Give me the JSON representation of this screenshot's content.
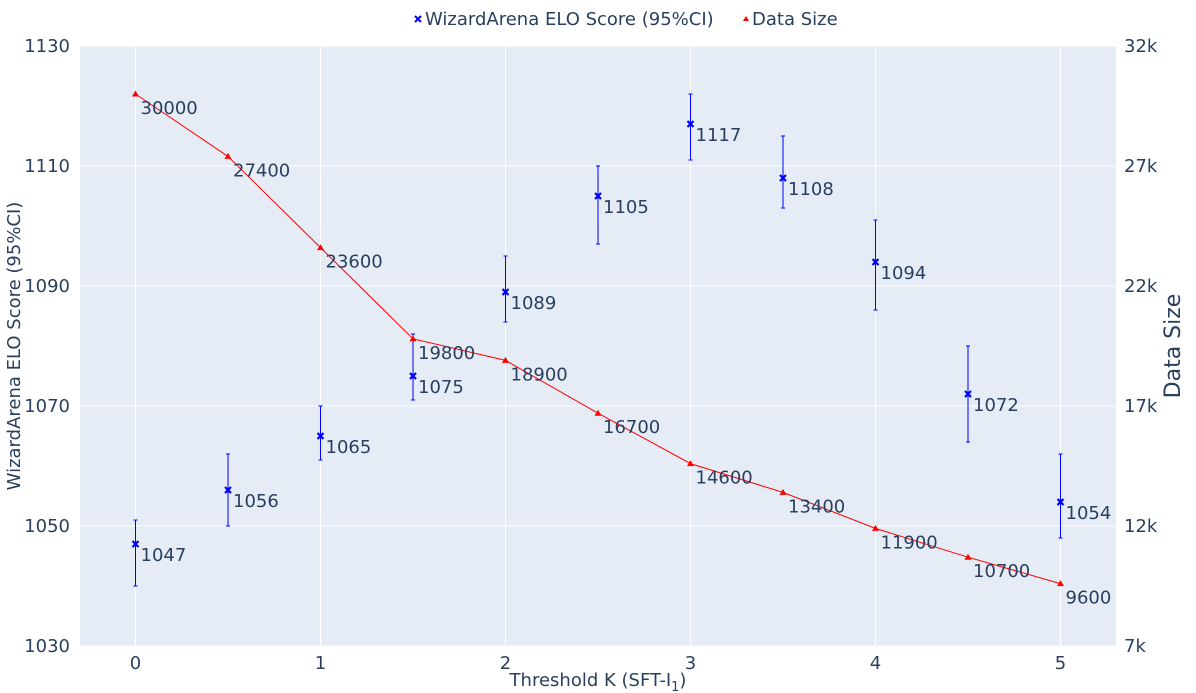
{
  "chart_data": {
    "type": "line",
    "x": [
      0,
      0.5,
      1,
      1.5,
      2,
      2.5,
      3,
      3.5,
      4,
      4.5,
      5
    ],
    "xlabel": "Threshold K (SFT-I",
    "xlabel_sub": "1",
    "xlabel_close": ")",
    "xlim": [
      -0.3,
      5.3
    ],
    "xticks": [
      0,
      1,
      2,
      3,
      4,
      5
    ],
    "xtick_labels": [
      "0",
      "1",
      "2",
      "3",
      "4",
      "5"
    ],
    "y_left": {
      "label": "WizardArena ELO Score (95%CI)",
      "lim": [
        1030,
        1130
      ],
      "ticks": [
        1030,
        1050,
        1070,
        1090,
        1110,
        1130
      ],
      "tick_labels": [
        "1030",
        "1050",
        "1070",
        "1090",
        "1110",
        "1130"
      ]
    },
    "y_right": {
      "label": "Data Size",
      "lim": [
        7000,
        32000
      ],
      "ticks": [
        7000,
        12000,
        17000,
        22000,
        27000,
        32000
      ],
      "tick_labels": [
        "7k",
        "12k",
        "17k",
        "22k",
        "27k",
        "32k"
      ]
    },
    "series": [
      {
        "name": "WizardArena ELO Score (95%CI)",
        "type": "scatter",
        "axis": "left",
        "color": "#0000ff",
        "marker": "x",
        "values": [
          1047,
          1056,
          1065,
          1075,
          1089,
          1105,
          1117,
          1108,
          1094,
          1072,
          1054
        ],
        "labels": [
          "1047",
          "1056",
          "1065",
          "1075",
          "1089",
          "1105",
          "1117",
          "1108",
          "1094",
          "1072",
          "1054"
        ],
        "error_low": [
          1040,
          1050,
          1061,
          1071,
          1084,
          1097,
          1111,
          1103,
          1086,
          1064,
          1048
        ],
        "error_high": [
          1051,
          1062,
          1070,
          1082,
          1095,
          1110,
          1122,
          1115,
          1101,
          1080,
          1062
        ]
      },
      {
        "name": "Data Size",
        "type": "line",
        "axis": "right",
        "color": "#ff0000",
        "marker": "triangle-up",
        "values": [
          30000,
          27400,
          23600,
          19800,
          18900,
          16700,
          14600,
          13400,
          11900,
          10700,
          9600
        ],
        "labels": [
          "30000",
          "27400",
          "23600",
          "19800",
          "18900",
          "16700",
          "14600",
          "13400",
          "11900",
          "10700",
          "9600"
        ]
      }
    ],
    "legend_position": "top-center",
    "grid": true,
    "background": "#e5ecf6"
  }
}
